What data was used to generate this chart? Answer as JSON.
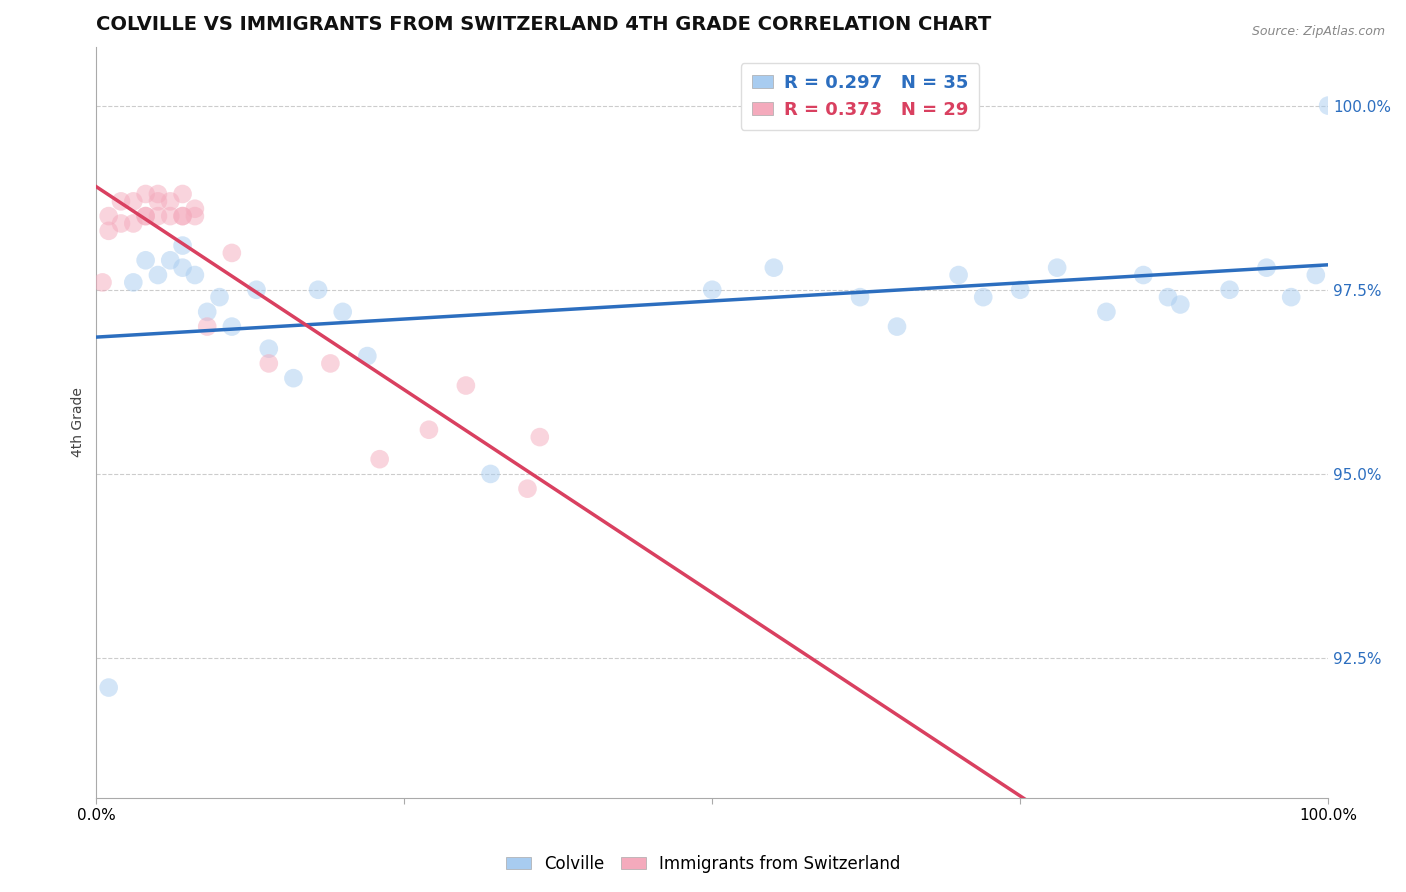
{
  "title": "COLVILLE VS IMMIGRANTS FROM SWITZERLAND 4TH GRADE CORRELATION CHART",
  "source_text": "Source: ZipAtlas.com",
  "ylabel": "4th Grade",
  "legend_label1": "Colville",
  "legend_label2": "Immigrants from Switzerland",
  "R1": 0.297,
  "N1": 35,
  "R2": 0.373,
  "N2": 29,
  "color1": "#A8CCF0",
  "color2": "#F4AABC",
  "line_color1": "#2C6EBF",
  "line_color2": "#D94060",
  "xlim": [
    0.0,
    1.0
  ],
  "ylim": [
    0.906,
    1.008
  ],
  "yticks": [
    0.925,
    0.95,
    0.975,
    1.0
  ],
  "ytick_labels": [
    "92.5%",
    "95.0%",
    "97.5%",
    "100.0%"
  ],
  "xticks": [
    0.0,
    0.25,
    0.5,
    0.75,
    1.0
  ],
  "xtick_labels": [
    "0.0%",
    "",
    "",
    "",
    "100.0%"
  ],
  "blue_x": [
    0.01,
    0.03,
    0.04,
    0.05,
    0.06,
    0.07,
    0.07,
    0.08,
    0.09,
    0.1,
    0.11,
    0.13,
    0.14,
    0.16,
    0.18,
    0.2,
    0.22,
    0.32,
    0.5,
    0.55,
    0.62,
    0.65,
    0.7,
    0.72,
    0.75,
    0.78,
    0.82,
    0.85,
    0.87,
    0.88,
    0.92,
    0.95,
    0.97,
    0.99,
    1.0
  ],
  "blue_y": [
    0.921,
    0.976,
    0.979,
    0.977,
    0.979,
    0.978,
    0.981,
    0.977,
    0.972,
    0.974,
    0.97,
    0.975,
    0.967,
    0.963,
    0.975,
    0.972,
    0.966,
    0.95,
    0.975,
    0.978,
    0.974,
    0.97,
    0.977,
    0.974,
    0.975,
    0.978,
    0.972,
    0.977,
    0.974,
    0.973,
    0.975,
    0.978,
    0.974,
    0.977,
    1.0
  ],
  "pink_x": [
    0.005,
    0.01,
    0.01,
    0.02,
    0.02,
    0.03,
    0.03,
    0.04,
    0.04,
    0.04,
    0.05,
    0.05,
    0.05,
    0.06,
    0.06,
    0.07,
    0.07,
    0.07,
    0.08,
    0.08,
    0.09,
    0.11,
    0.14,
    0.19,
    0.23,
    0.27,
    0.3,
    0.35,
    0.36
  ],
  "pink_y": [
    0.976,
    0.983,
    0.985,
    0.984,
    0.987,
    0.984,
    0.987,
    0.985,
    0.988,
    0.985,
    0.987,
    0.985,
    0.988,
    0.987,
    0.985,
    0.985,
    0.988,
    0.985,
    0.986,
    0.985,
    0.97,
    0.98,
    0.965,
    0.965,
    0.952,
    0.956,
    0.962,
    0.948,
    0.955
  ],
  "marker_size": 180,
  "alpha": 0.5,
  "figsize": [
    14.06,
    8.92
  ],
  "dpi": 100,
  "background_color": "#ffffff",
  "grid_color": "#cccccc",
  "title_fontsize": 14,
  "axis_label_fontsize": 10
}
